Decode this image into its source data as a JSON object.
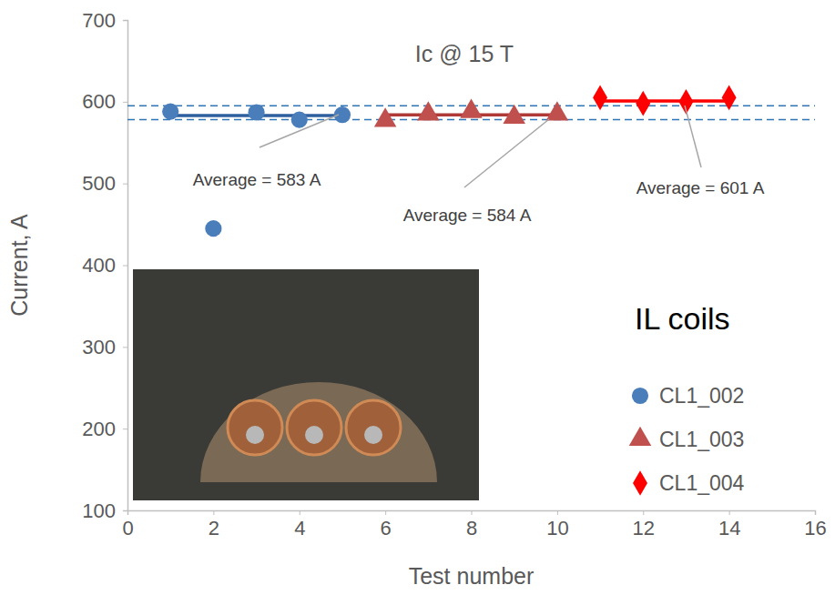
{
  "chart_data": {
    "type": "scatter",
    "title": "Ic @ 15 T",
    "x_label": "Test number",
    "y_label": "Current, A",
    "xlim": [
      0,
      16
    ],
    "xticks": [
      0,
      2,
      4,
      6,
      8,
      10,
      12,
      14,
      16
    ],
    "ylim": [
      100,
      700
    ],
    "yticks": [
      100,
      200,
      300,
      400,
      500,
      600,
      700
    ],
    "grid": false,
    "legend": "right",
    "legend_title": "IL coils",
    "series": [
      {
        "name": "CL1_002",
        "color": "#4a7ebb",
        "marker": "circle",
        "x": [
          1,
          2,
          3,
          4,
          5
        ],
        "values": [
          588,
          445,
          587,
          578,
          584
        ],
        "average": {
          "value": 583,
          "label": "Average = 583 A",
          "color": "#2e5f9e"
        }
      },
      {
        "name": "CL1_003",
        "color": "#c0504d",
        "marker": "triangle",
        "x": [
          6,
          7,
          8,
          9,
          10
        ],
        "values": [
          577,
          585,
          588,
          581,
          585
        ],
        "average": {
          "value": 584,
          "label": "Average = 584 A",
          "color": "#b03a37"
        }
      },
      {
        "name": "CL1_004",
        "color": "#ff0000",
        "marker": "diamond",
        "x": [
          11,
          12,
          13,
          14
        ],
        "values": [
          605,
          598,
          600,
          605
        ],
        "average": {
          "value": 601,
          "label": "Average = 601 A",
          "color": "#ff0000"
        }
      }
    ],
    "reference_lines": [
      {
        "value": 595,
        "color": "#2e75b6",
        "line_style": "dashed"
      },
      {
        "value": 578,
        "color": "#2e75b6",
        "line_style": "dashed"
      }
    ]
  }
}
